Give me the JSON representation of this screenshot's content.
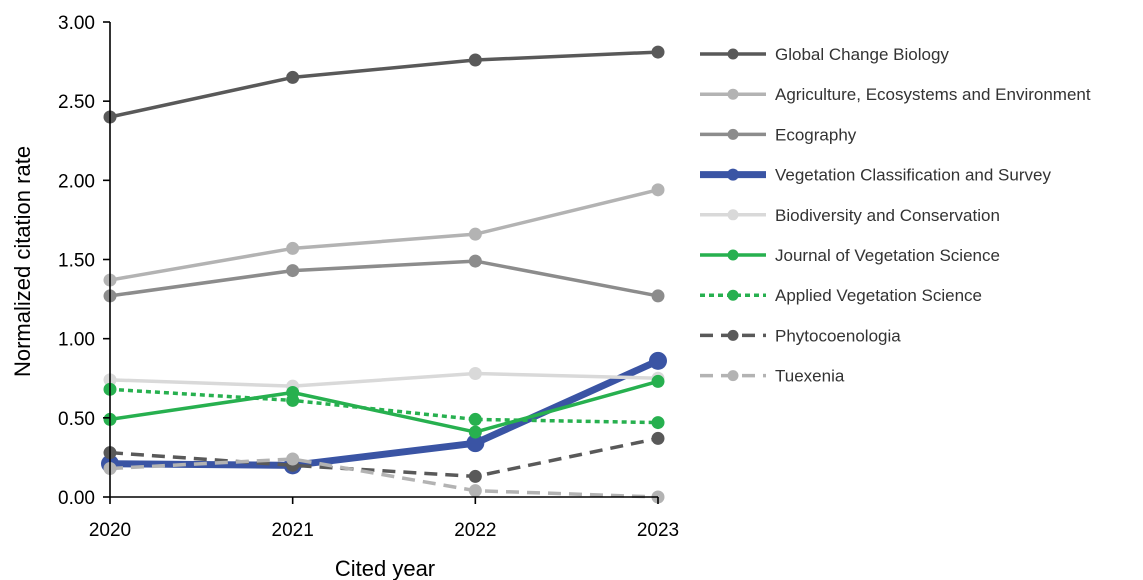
{
  "chart_data": {
    "type": "line",
    "xlabel": "Cited year",
    "ylabel": "Normalized citation rate",
    "x": [
      2020,
      2021,
      2022,
      2023
    ],
    "x_tick_labels": [
      "2020",
      "2021",
      "2022",
      "2023"
    ],
    "ylim": [
      0,
      3
    ],
    "y_tick_labels": [
      "0.00",
      "0.50",
      "1.00",
      "1.50",
      "2.00",
      "2.50",
      "3.00"
    ],
    "grid": false,
    "legend_position": "right",
    "series": [
      {
        "name": "Global Change Biology",
        "values": [
          2.4,
          2.65,
          2.76,
          2.81
        ],
        "color": "#595959",
        "dash": "solid",
        "emphasis": false
      },
      {
        "name": "Agriculture, Ecosystems and Environment",
        "values": [
          1.37,
          1.57,
          1.66,
          1.94
        ],
        "color": "#b3b3b3",
        "dash": "solid",
        "emphasis": false
      },
      {
        "name": "Ecography",
        "values": [
          1.27,
          1.43,
          1.49,
          1.27
        ],
        "color": "#8c8c8c",
        "dash": "solid",
        "emphasis": false
      },
      {
        "name": "Vegetation Classification and Survey",
        "values": [
          0.21,
          0.2,
          0.34,
          0.86
        ],
        "color": "#3a54a4",
        "dash": "solid",
        "emphasis": true
      },
      {
        "name": "Biodiversity and Conservation",
        "values": [
          0.74,
          0.7,
          0.78,
          0.75
        ],
        "color": "#d9d9d9",
        "dash": "solid",
        "emphasis": false
      },
      {
        "name": "Journal of Vegetation Science",
        "values": [
          0.49,
          0.66,
          0.41,
          0.73
        ],
        "color": "#27b04f",
        "dash": "solid",
        "emphasis": false
      },
      {
        "name": "Applied Vegetation Science",
        "values": [
          0.68,
          0.61,
          0.49,
          0.47
        ],
        "color": "#27b04f",
        "dash": "dotted",
        "emphasis": false
      },
      {
        "name": "Phytocoenologia",
        "values": [
          0.28,
          0.2,
          0.13,
          0.37
        ],
        "color": "#595959",
        "dash": "dashed",
        "emphasis": false
      },
      {
        "name": "Tuexenia",
        "values": [
          0.18,
          0.24,
          0.04,
          0.0
        ],
        "color": "#b3b3b3",
        "dash": "dashed",
        "emphasis": false
      }
    ]
  }
}
